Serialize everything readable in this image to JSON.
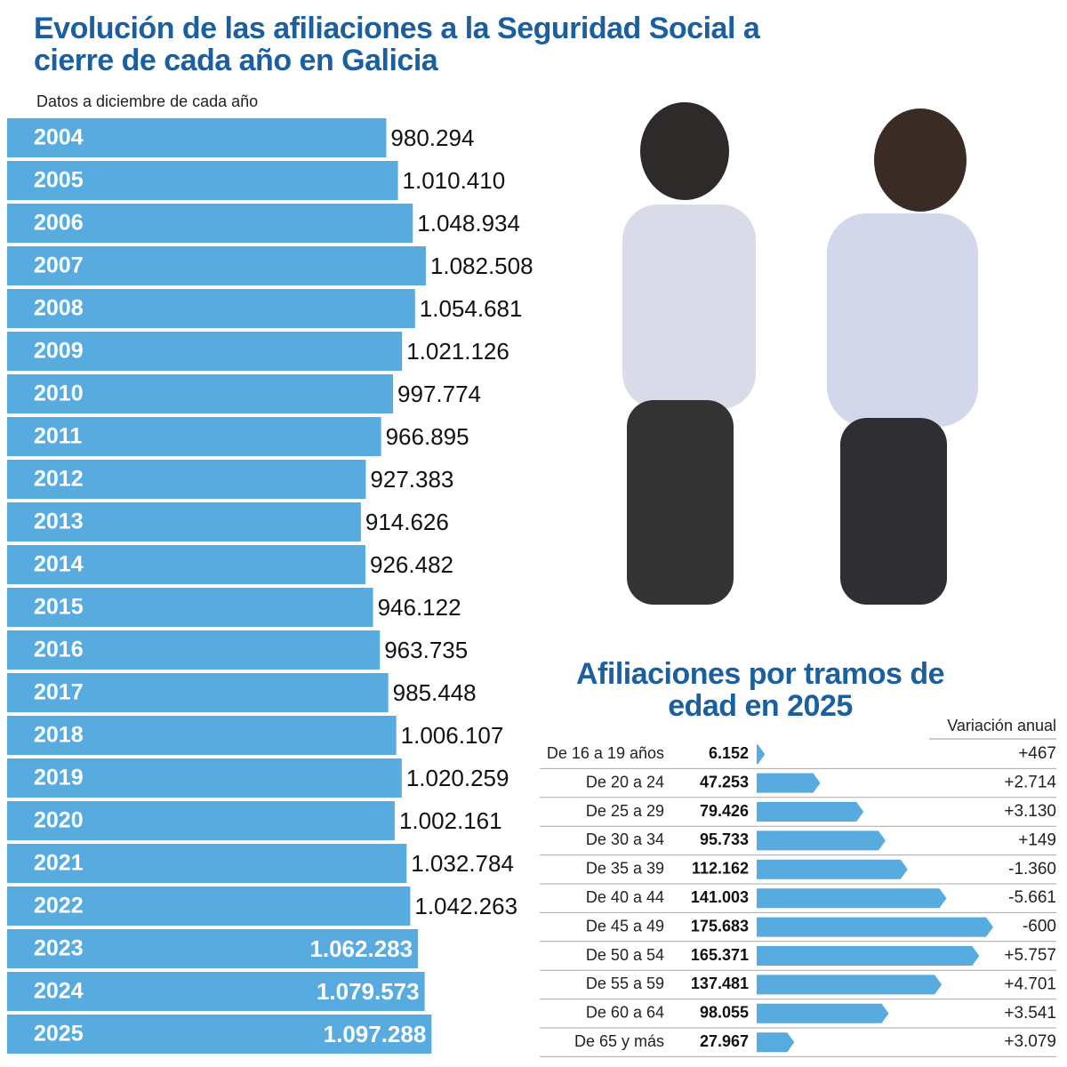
{
  "chart_data": [
    {
      "type": "hbar",
      "title": "Evolución de las afiliaciones a la Seguridad Social a cierre de cada año en Galicia",
      "subtitle": "Datos a diciembre de cada año",
      "color": "#57abdf",
      "categories": [
        "2004",
        "2005",
        "2006",
        "2007",
        "2008",
        "2009",
        "2010",
        "2011",
        "2012",
        "2013",
        "2014",
        "2015",
        "2016",
        "2017",
        "2018",
        "2019",
        "2020",
        "2021",
        "2022",
        "2023",
        "2024",
        "2025"
      ],
      "values": [
        980294,
        1010410,
        1048934,
        1082508,
        1054681,
        1021126,
        997774,
        966895,
        927383,
        914626,
        926482,
        946122,
        963735,
        985448,
        1006107,
        1020259,
        1002161,
        1032784,
        1042263,
        1062283,
        1079573,
        1097288
      ],
      "value_labels": [
        "980.294",
        "1.010.410",
        "1.048.934",
        "1.082.508",
        "1.054.681",
        "1.021.126",
        "997.774",
        "966.895",
        "927.383",
        "914.626",
        "926.482",
        "946.122",
        "963.735",
        "985.448",
        "1.006.107",
        "1.020.259",
        "1.002.161",
        "1.032.784",
        "1.042.263",
        "1.062.283",
        "1.079.573",
        "1.097.288"
      ]
    },
    {
      "type": "arrow",
      "title": "Afiliaciones por tramos de edad en 2025",
      "color": "#57abdf",
      "categories": [
        "De 16 a 19 años",
        "De 20 a 24",
        "De 25 a 29",
        "De 30 a 34",
        "De 35 a 39",
        "De 40 a 44",
        "De 45 a 49",
        "De 50 a 54",
        "De 55 a 59",
        "De 60 a 64",
        "De 65 y más"
      ],
      "values": [
        6152,
        47253,
        79426,
        95733,
        112162,
        141003,
        175683,
        165371,
        137481,
        98055,
        27967
      ],
      "value_labels": [
        "6.152",
        "47.253",
        "79.426",
        "95.733",
        "112.162",
        "141.003",
        "175.683",
        "165.371",
        "137.481",
        "98.055",
        "27.967"
      ],
      "change_header": "Variación anual",
      "change_labels": [
        "+467",
        "+2.714",
        "+3.130",
        "+149",
        "-1.360",
        "-5.661",
        "-600",
        "+5.757",
        "+4.701",
        "+3.541",
        "+3.079"
      ]
    }
  ]
}
